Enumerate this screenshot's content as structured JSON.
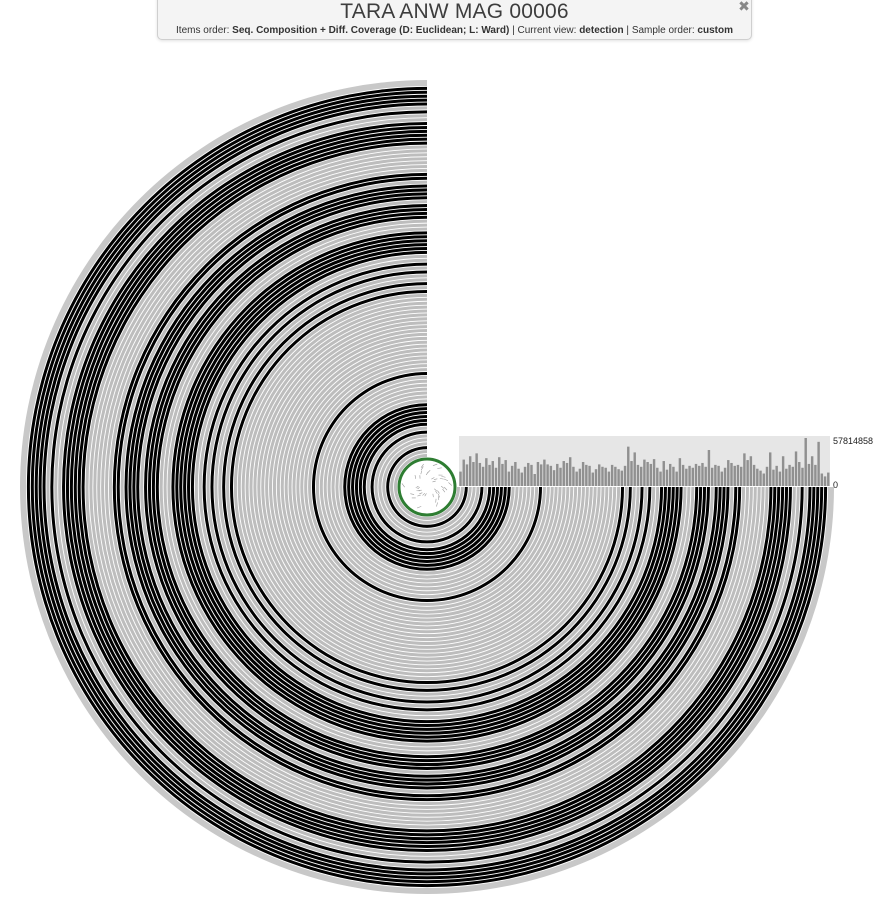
{
  "title": "TARA ANW MAG 00006",
  "subtitle": {
    "items_order_label": "Items order:",
    "items_order_value": "Seq. Composition + Diff. Coverage (D: Euclidean; L: Ward)",
    "sep1": "|",
    "current_view_label": "Current view:",
    "current_view_value": "detection",
    "sep2": "|",
    "sample_order_label": "Sample order:",
    "sample_order_value": "custom"
  },
  "close_icon": "close-icon",
  "bar_chart": {
    "max_label": "57814858",
    "min_label": "0",
    "values": [
      0.3,
      0.55,
      0.45,
      0.62,
      0.5,
      0.68,
      0.48,
      0.4,
      0.58,
      0.44,
      0.52,
      0.38,
      0.6,
      0.46,
      0.54,
      0.3,
      0.42,
      0.5,
      0.36,
      0.28,
      0.4,
      0.48,
      0.44,
      0.25,
      0.5,
      0.45,
      0.55,
      0.45,
      0.42,
      0.33,
      0.46,
      0.38,
      0.52,
      0.48,
      0.6,
      0.4,
      0.3,
      0.36,
      0.5,
      0.44,
      0.42,
      0.28,
      0.35,
      0.45,
      0.4,
      0.38,
      0.3,
      0.44,
      0.4,
      0.35,
      0.32,
      0.42,
      0.82,
      0.52,
      0.7,
      0.44,
      0.4,
      0.55,
      0.5,
      0.46,
      0.56,
      0.38,
      0.3,
      0.52,
      0.34,
      0.46,
      0.4,
      0.3,
      0.58,
      0.44,
      0.36,
      0.42,
      0.38,
      0.46,
      0.42,
      0.48,
      0.4,
      0.75,
      0.38,
      0.44,
      0.42,
      0.3,
      0.38,
      0.54,
      0.48,
      0.42,
      0.44,
      0.4,
      0.68,
      0.54,
      0.62,
      0.44,
      0.36,
      0.32,
      0.26,
      0.4,
      0.7,
      0.34,
      0.42,
      0.3,
      0.62,
      0.36,
      0.44,
      0.4,
      0.72,
      0.5,
      0.38,
      1.0,
      0.46,
      0.62,
      0.44,
      0.92,
      0.26,
      0.2,
      0.28
    ]
  },
  "colors": {
    "ring_gray": "#bdbdbd",
    "ring_black": "#000000",
    "gap_white": "#ffffff",
    "bar_gray": "#909090",
    "bar_bg": "#e6e6e6",
    "inner_green": "#2e7d32"
  }
}
